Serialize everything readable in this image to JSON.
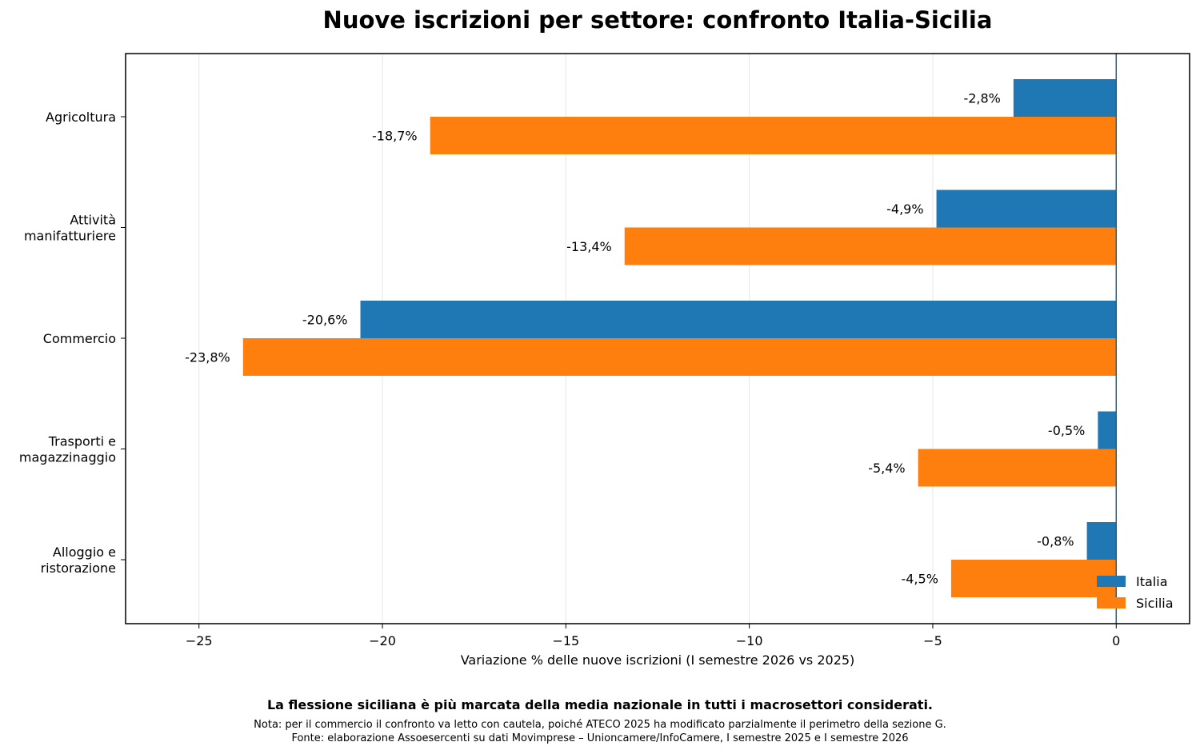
{
  "chart_data": {
    "type": "bar",
    "orientation": "horizontal",
    "title": "Nuove iscrizioni per settore: confronto Italia-Sicilia",
    "xlabel": "Variazione % delle nuove iscrizioni (I semestre 2026 vs 2025)",
    "ylabel": "",
    "categories": [
      [
        "Agricoltura"
      ],
      [
        "Attività",
        "manifatturiere"
      ],
      [
        "Commercio"
      ],
      [
        "Trasporti e",
        "magazzinaggio"
      ],
      [
        "Alloggio e",
        "ristorazione"
      ]
    ],
    "series": [
      {
        "name": "Italia",
        "color": "#1f77b4",
        "values": [
          -2.8,
          -4.9,
          -20.6,
          -0.5,
          -0.8
        ],
        "labels": [
          "-2,8%",
          "-4,9%",
          "-20,6%",
          "-0,5%",
          "-0,8%"
        ]
      },
      {
        "name": "Sicilia",
        "color": "#ff7f0e",
        "values": [
          -18.7,
          -13.4,
          -23.8,
          -5.4,
          -4.5
        ],
        "labels": [
          "-18,7%",
          "-13,4%",
          "-23,8%",
          "-5,4%",
          "-4,5%"
        ]
      }
    ],
    "xlim": [
      -27,
      2
    ],
    "xticks": [
      -25,
      -20,
      -15,
      -10,
      -5,
      0
    ],
    "xtick_labels": [
      "−25",
      "−20",
      "−15",
      "−10",
      "−5",
      "0"
    ],
    "grid": "vertical",
    "legend_position": "lower-right",
    "zero_line_color": "#1f5f8b"
  },
  "caption": "La flessione siciliana è più marcata della media nazionale in tutti i macrosettori considerati.",
  "notes": [
    "Nota: per il commercio il confronto va letto con cautela, poiché ATECO 2025 ha modificato parzialmente il perimetro della sezione G.",
    "Fonte: elaborazione Assoesercenti su dati Movimprese – Unioncamere/InfoCamere, I semestre 2025 e I semestre 2026"
  ]
}
